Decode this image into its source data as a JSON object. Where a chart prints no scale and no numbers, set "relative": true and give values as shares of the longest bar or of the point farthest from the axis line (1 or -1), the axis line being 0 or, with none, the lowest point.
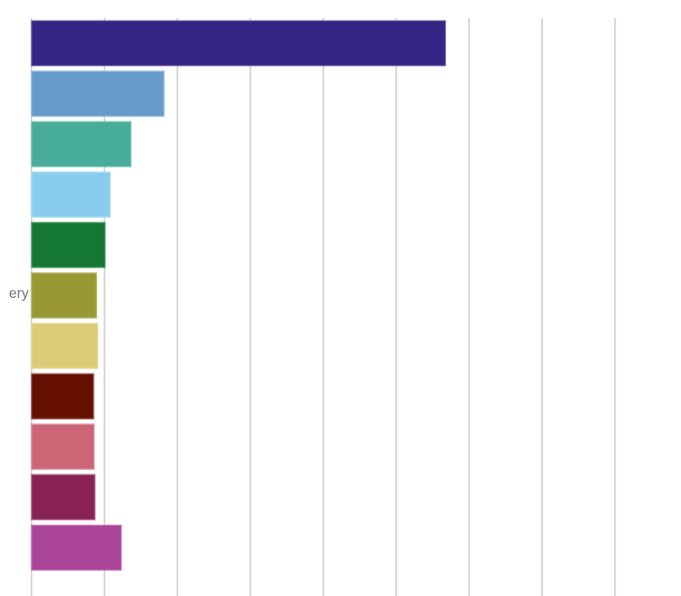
{
  "chart_data": {
    "type": "bar",
    "orientation": "horizontal",
    "relative": true,
    "grid": "x",
    "categories": [
      null,
      null,
      null,
      null,
      null,
      "ery",
      null,
      null,
      null,
      null,
      null
    ],
    "values": [
      1,
      0.32,
      0.24,
      0.19,
      0.178,
      0.157,
      0.16,
      0.15,
      0.151,
      0.153,
      0.217
    ],
    "colors": [
      "#352585",
      "#669bcc",
      "#47ad9a",
      "#89cdee",
      "#147833",
      "#999933",
      "#ddcc77",
      "#661100",
      "#cc6677",
      "#882255",
      "#aa4499"
    ]
  }
}
